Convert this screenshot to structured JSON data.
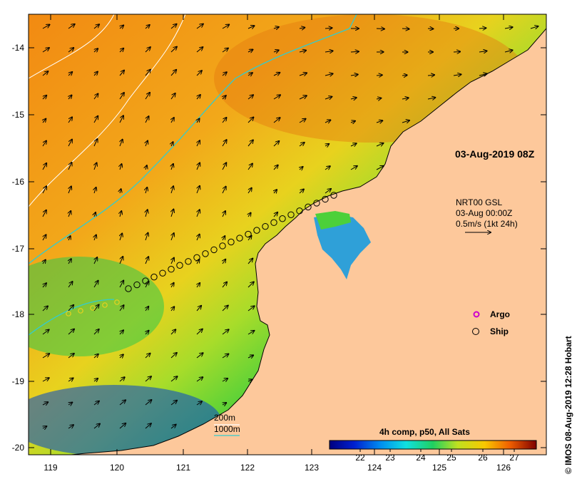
{
  "map": {
    "x_ticks": [
      "119",
      "120",
      "121",
      "122",
      "123",
      "124",
      "125",
      "126"
    ],
    "y_ticks": [
      "-14",
      "-15",
      "-16",
      "-17",
      "-18",
      "-19",
      "-20"
    ],
    "date_label": "03-Aug-2019 08Z",
    "current_info": {
      "line1": "NRT00 GSL",
      "line2": "03-Aug 00:00Z",
      "line3": "0.5m/s (1kt 24h)"
    },
    "legend": {
      "argo": "Argo",
      "ship": "Ship",
      "argo_color": "#cc00cc",
      "ship_color": "#000000"
    },
    "contours": {
      "label_200": "200m",
      "label_1000": "1000m",
      "color_200": "#ffffff",
      "color_1000": "#33cccc"
    },
    "colorbar": {
      "title": "4h comp, p50, All Sats",
      "ticks": [
        "22",
        "23",
        "24",
        "25",
        "26",
        "27"
      ]
    },
    "credit": "© IMOS 08-Aug-2019 12:28 Hobart",
    "land_color": "#fdc89b"
  }
}
